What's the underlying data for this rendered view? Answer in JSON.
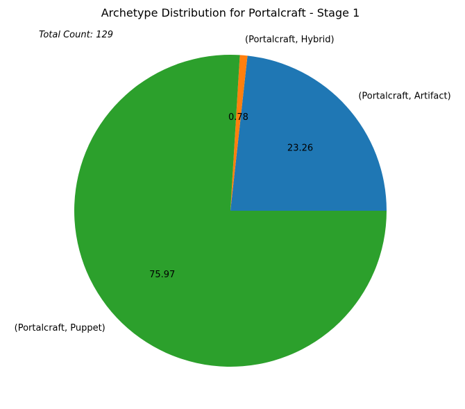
{
  "chart_data": {
    "type": "pie",
    "title": "Archetype Distribution for Portalcraft - Stage 1",
    "annotation": "Total Count: 129",
    "slices": [
      {
        "label": "(Portalcraft, Artifact)",
        "value": 23.26,
        "pct_label": "23.26",
        "color": "#1f77b4"
      },
      {
        "label": "(Portalcraft, Hybrid)",
        "value": 0.78,
        "pct_label": "0.78",
        "color": "#ff7f0e"
      },
      {
        "label": "(Portalcraft, Puppet)",
        "value": 75.97,
        "pct_label": "75.97",
        "color": "#2ca02c"
      }
    ]
  }
}
